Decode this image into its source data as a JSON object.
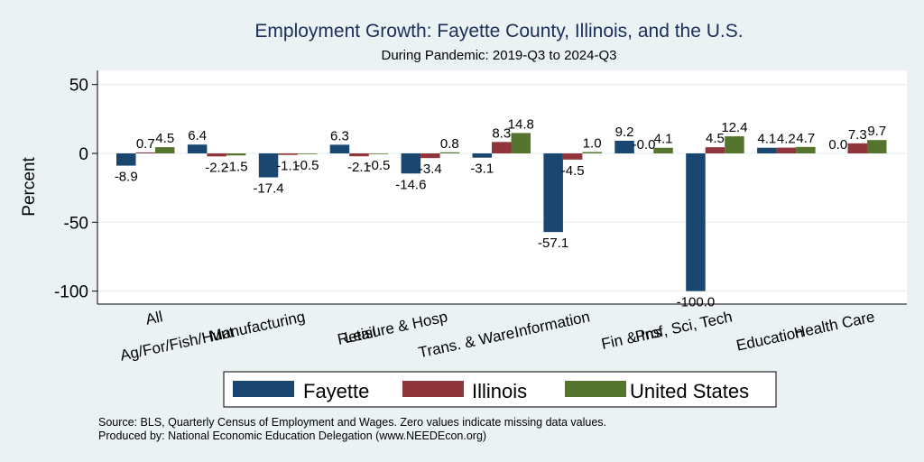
{
  "chart_data": {
    "type": "bar",
    "title": "Employment Growth: Fayette County, Illinois, and the U.S.",
    "subtitle": "During Pandemic: 2019-Q3 to 2024-Q3",
    "xlabel": "",
    "ylabel": "Percent",
    "ylim": [
      -105,
      60
    ],
    "yticks": [
      50,
      0,
      -50,
      -100
    ],
    "grid": true,
    "legend_position": "bottom",
    "categories": [
      "All",
      "Ag/For/Fish/Hunt",
      "Manufacturing",
      "Retail",
      "Leisure & Hosp",
      "Trans. & Ware.",
      "Information",
      "Fin & Ins",
      "Prof, Sci, Tech",
      "Education",
      "Health Care"
    ],
    "series": [
      {
        "name": "Fayette",
        "color": "#1a476f",
        "values": [
          -8.9,
          6.4,
          -17.4,
          6.3,
          -14.6,
          -3.1,
          -57.1,
          9.2,
          -100.0,
          4.1,
          0.0
        ]
      },
      {
        "name": "Illinois",
        "color": "#90353b",
        "values": [
          0.7,
          -2.2,
          -1.1,
          -2.1,
          -3.4,
          8.3,
          -4.5,
          -0.0,
          4.5,
          4.2,
          7.3
        ]
      },
      {
        "name": "United States",
        "color": "#55752f",
        "values": [
          4.5,
          -1.5,
          -0.5,
          -0.5,
          0.8,
          14.8,
          1.0,
          4.1,
          12.4,
          4.7,
          9.7
        ]
      }
    ],
    "data_labels": [
      [
        "-8.9",
        "6.4",
        "-17.4",
        "6.3",
        "-14.6",
        "-3.1",
        "-57.1",
        "9.2",
        "-100.0",
        "4.1",
        "0.0"
      ],
      [
        "0.7",
        "-2.2",
        "-1.1",
        "-2.1",
        "-3.4",
        "8.3",
        "-4.5",
        "-0.0",
        "4.5",
        "4.2",
        "7.3"
      ],
      [
        "4.5",
        "-1.5",
        "-0.5",
        "-0.5",
        "0.8",
        "14.8",
        "1.0",
        "4.1",
        "12.4",
        "4.7",
        "9.7"
      ]
    ]
  },
  "footnotes": {
    "source": "Source: BLS, Quarterly Census of Employment and Wages. Zero values indicate missing data values.",
    "producer": "Produced by: National Economic Education Delegation (www.NEEDEcon.org)"
  }
}
